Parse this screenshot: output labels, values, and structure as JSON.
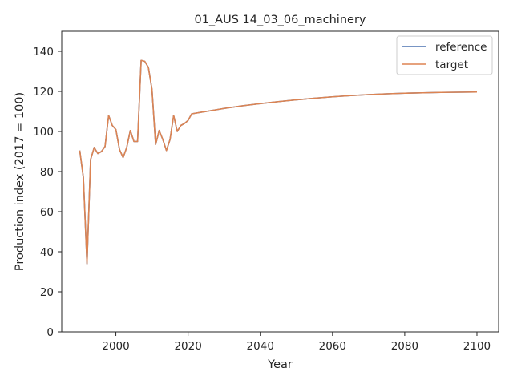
{
  "chart_data": {
    "type": "line",
    "title": "01_AUS 14_03_06_machinery",
    "xlabel": "Year",
    "ylabel": "Production index (2017 = 100)",
    "xlim": [
      1985,
      2106
    ],
    "ylim": [
      0,
      150
    ],
    "xticks": [
      2000,
      2020,
      2040,
      2060,
      2080,
      2100
    ],
    "yticks": [
      0,
      20,
      40,
      60,
      80,
      100,
      120,
      140
    ],
    "grid": false,
    "legend_position": "top-right",
    "series": [
      {
        "name": "reference",
        "color": "#4c72b0",
        "x": [
          1990,
          1991,
          1992,
          1993,
          1994,
          1995,
          1996,
          1997,
          1998,
          1999,
          2000,
          2001,
          2002,
          2003,
          2004,
          2005,
          2006,
          2007,
          2008,
          2009,
          2010,
          2011,
          2012,
          2013,
          2014,
          2015,
          2016,
          2017,
          2018,
          2019,
          2020,
          2021,
          2025,
          2030,
          2035,
          2040,
          2045,
          2050,
          2055,
          2060,
          2065,
          2070,
          2075,
          2080,
          2085,
          2090,
          2095,
          2100
        ],
        "y": [
          90.5,
          77,
          34,
          86,
          92,
          89,
          90,
          92.5,
          108,
          103,
          101,
          91,
          87,
          92,
          100.5,
          95,
          95,
          135.5,
          135,
          132,
          121,
          93.5,
          100.5,
          96,
          90.5,
          96,
          108,
          100,
          103,
          104,
          105.5,
          108.8,
          110,
          111.5,
          112.8,
          113.9,
          114.9,
          115.8,
          116.6,
          117.3,
          117.9,
          118.4,
          118.8,
          119.1,
          119.3,
          119.5,
          119.6,
          119.7
        ]
      },
      {
        "name": "target",
        "color": "#dd8452",
        "x": [
          1990,
          1991,
          1992,
          1993,
          1994,
          1995,
          1996,
          1997,
          1998,
          1999,
          2000,
          2001,
          2002,
          2003,
          2004,
          2005,
          2006,
          2007,
          2008,
          2009,
          2010,
          2011,
          2012,
          2013,
          2014,
          2015,
          2016,
          2017,
          2018,
          2019,
          2020,
          2021,
          2025,
          2030,
          2035,
          2040,
          2045,
          2050,
          2055,
          2060,
          2065,
          2070,
          2075,
          2080,
          2085,
          2090,
          2095,
          2100
        ],
        "y": [
          90.5,
          77,
          34,
          86,
          92,
          89,
          90,
          92.5,
          108,
          103,
          101,
          91,
          87,
          92,
          100.5,
          95,
          95,
          135.5,
          135,
          132,
          121,
          93.5,
          100.5,
          96,
          90.5,
          96,
          108,
          100,
          103,
          104,
          105.5,
          108.8,
          110,
          111.5,
          112.8,
          113.9,
          114.9,
          115.8,
          116.6,
          117.3,
          117.9,
          118.4,
          118.8,
          119.1,
          119.3,
          119.5,
          119.6,
          119.7
        ]
      }
    ]
  }
}
